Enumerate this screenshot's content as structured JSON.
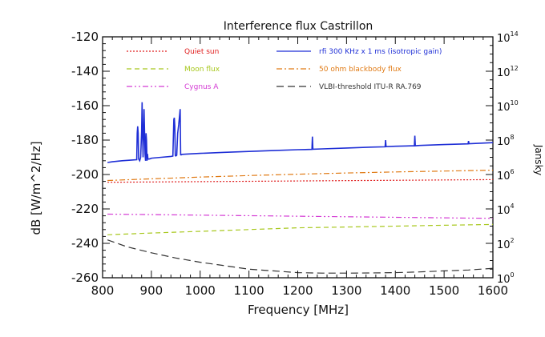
{
  "chart_data": {
    "type": "line",
    "title": "Interference flux Castrillon",
    "xlabel": "Frequency [MHz]",
    "ylabel": "dB [W/m^2/Hz]",
    "ylabel2": "Jansky",
    "xlim": [
      800,
      1600
    ],
    "ylim": [
      -260,
      -120
    ],
    "x_ticks": [
      "800",
      "900",
      "1000",
      "1100",
      "1200",
      "1300",
      "1400",
      "1500",
      "1600"
    ],
    "y_ticks": [
      "-120",
      "-140",
      "-160",
      "-180",
      "-200",
      "-220",
      "-240",
      "-260"
    ],
    "y2_ticks": [
      {
        "base": "10",
        "exp": "14",
        "db": -120
      },
      {
        "base": "10",
        "exp": "12",
        "db": -140
      },
      {
        "base": "10",
        "exp": "10",
        "db": -160
      },
      {
        "base": "10",
        "exp": "8",
        "db": -180
      },
      {
        "base": "10",
        "exp": "6",
        "db": -200
      },
      {
        "base": "10",
        "exp": "4",
        "db": -220
      },
      {
        "base": "10",
        "exp": "2",
        "db": -240
      },
      {
        "base": "10",
        "exp": "0",
        "db": -260
      }
    ],
    "grid": false,
    "legend_position": "top",
    "series": [
      {
        "name": "Quiet sun",
        "color": "#e02020",
        "dash": "2,2",
        "legend_column": 0,
        "x": [
          810,
          1600
        ],
        "y": [
          -204.5,
          -203
        ]
      },
      {
        "name": "rfi 300 KHz x 1 ms (isotropic gain)",
        "color": "#1f2fd6",
        "dash": "",
        "legend_column": 1,
        "x": [
          810,
          820,
          840,
          860,
          870,
          871,
          872,
          873,
          874,
          876,
          878,
          880,
          881,
          882,
          883,
          884,
          885,
          886,
          887,
          888,
          889,
          890,
          891,
          892,
          893,
          895,
          898,
          900,
          920,
          940,
          944,
          946,
          947,
          948,
          949,
          950,
          952,
          954,
          956,
          958,
          959,
          960,
          961,
          962,
          963,
          964,
          970,
          1000,
          1050,
          1100,
          1150,
          1200,
          1229,
          1230,
          1231,
          1250,
          1300,
          1350,
          1379,
          1380,
          1381,
          1400,
          1439,
          1440,
          1441,
          1450,
          1500,
          1549,
          1550,
          1551,
          1560,
          1600
        ],
        "y": [
          -193,
          -192.6,
          -192,
          -191.6,
          -191.4,
          -176,
          -172,
          -176,
          -191,
          -192,
          -190,
          -175,
          -158,
          -176,
          -190,
          -177,
          -162,
          -176,
          -188,
          -192,
          -176,
          -180,
          -192,
          -188,
          -191,
          -191,
          -190.8,
          -190.5,
          -190,
          -189.5,
          -189.3,
          -168,
          -167,
          -172,
          -189,
          -189.2,
          -188.8,
          -176,
          -171,
          -165,
          -162,
          -188.5,
          -188.6,
          -188.4,
          -188.3,
          -188.3,
          -188.2,
          -187.7,
          -187.1,
          -186.6,
          -186.1,
          -185.6,
          -185.4,
          -178,
          -185.3,
          -185.1,
          -184.6,
          -184.1,
          -183.9,
          -180,
          -183.8,
          -183.6,
          -183.3,
          -177.5,
          -183.3,
          -183.1,
          -182.6,
          -182.2,
          -180.5,
          -182.1,
          -182,
          -181.5
        ]
      },
      {
        "name": "Moon flux",
        "color": "#a8c81e",
        "dash": "6,4",
        "legend_column": 0,
        "x": [
          810,
          900,
          1000,
          1100,
          1200,
          1300,
          1400,
          1500,
          1600
        ],
        "y": [
          -235,
          -234,
          -233,
          -232,
          -231,
          -230.5,
          -230,
          -229.5,
          -229
        ]
      },
      {
        "name": "50 ohm blackbody flux",
        "color": "#e07a14",
        "dash": "7,3,2,3",
        "legend_column": 1,
        "x": [
          810,
          900,
          1000,
          1100,
          1200,
          1300,
          1400,
          1500,
          1600
        ],
        "y": [
          -203.5,
          -202.5,
          -201.5,
          -200.6,
          -199.8,
          -199.1,
          -198.5,
          -198,
          -197.5
        ]
      },
      {
        "name": "Cygnus A",
        "color": "#d43ad4",
        "dash": "7,3,2,3,2,3",
        "legend_column": 0,
        "x": [
          810,
          1600
        ],
        "y": [
          -223,
          -225.5
        ]
      },
      {
        "name": "VLBI-threshold ITU-R RA.769",
        "color": "#333333",
        "dash": "9,5",
        "legend_column": 1,
        "x": [
          810,
          850,
          900,
          950,
          1000,
          1050,
          1100,
          1150,
          1200,
          1250,
          1300,
          1350,
          1400,
          1450,
          1500,
          1550,
          1600
        ],
        "y": [
          -238,
          -242,
          -245.5,
          -248.5,
          -251,
          -253,
          -255,
          -256,
          -257,
          -257.3,
          -257.3,
          -257.2,
          -257,
          -256.6,
          -256,
          -255.5,
          -254.5
        ]
      }
    ]
  }
}
